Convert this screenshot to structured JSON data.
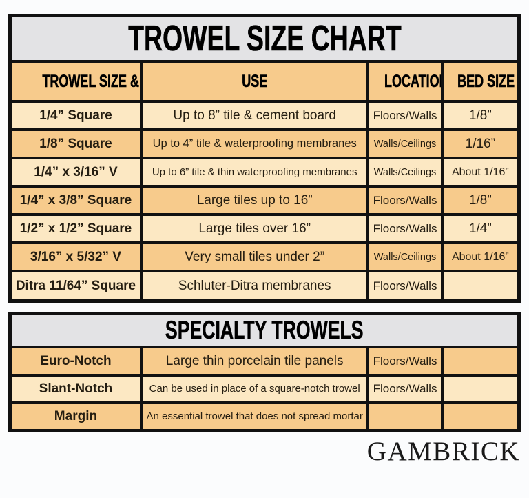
{
  "colors": {
    "panel_header_bg": "#e3e3e5",
    "row_orange": "#f7cb8c",
    "row_cream": "#fce8c3",
    "border": "#111111",
    "body_text": "#241d11",
    "heading_text": "#000000",
    "page_bg": "#fbfcfd"
  },
  "main_table": {
    "title": "TROWEL SIZE CHART",
    "headers": [
      "TROWEL SIZE & SHAPE",
      "USE",
      "LOCATION",
      "BED SIZE"
    ],
    "rows": [
      {
        "shape": "1/4” Square",
        "use": "Up to 8” tile & cement board",
        "location": "Floors/Walls",
        "bed": "1/8”"
      },
      {
        "shape": "1/8” Square",
        "use": "Up to 4” tile & waterproofing membranes",
        "location": "Walls/Ceilings",
        "bed": "1/16”"
      },
      {
        "shape": "1/4” x 3/16” V",
        "use": "Up to 6” tile & thin waterproofing membranes",
        "location": "Walls/Ceilings",
        "bed": "About 1/16”"
      },
      {
        "shape": "1/4” x 3/8” Square",
        "use": "Large tiles up to 16”",
        "location": "Floors/Walls",
        "bed": "1/8”"
      },
      {
        "shape": "1/2” x 1/2” Square",
        "use": "Large tiles over 16”",
        "location": "Floors/Walls",
        "bed": "1/4”"
      },
      {
        "shape": "3/16” x 5/32” V",
        "use": "Very small tiles under 2”",
        "location": "Walls/Ceilings",
        "bed": "About 1/16”"
      },
      {
        "shape": "Ditra 11/64” Square",
        "use": "Schluter-Ditra membranes",
        "location": "Floors/Walls",
        "bed": ""
      }
    ]
  },
  "specialty_table": {
    "title": "SPECIALTY TROWELS",
    "rows": [
      {
        "shape": "Euro-Notch",
        "use": "Large thin porcelain tile panels",
        "location": "Floors/Walls",
        "bed": ""
      },
      {
        "shape": "Slant-Notch",
        "use": "Can be used in place of a square-notch trowel",
        "location": "Floors/Walls",
        "bed": ""
      },
      {
        "shape": "Margin",
        "use": "An essential trowel that does not spread mortar",
        "location": "",
        "bed": ""
      }
    ]
  },
  "footer": {
    "brand": "GAMBRICK"
  }
}
